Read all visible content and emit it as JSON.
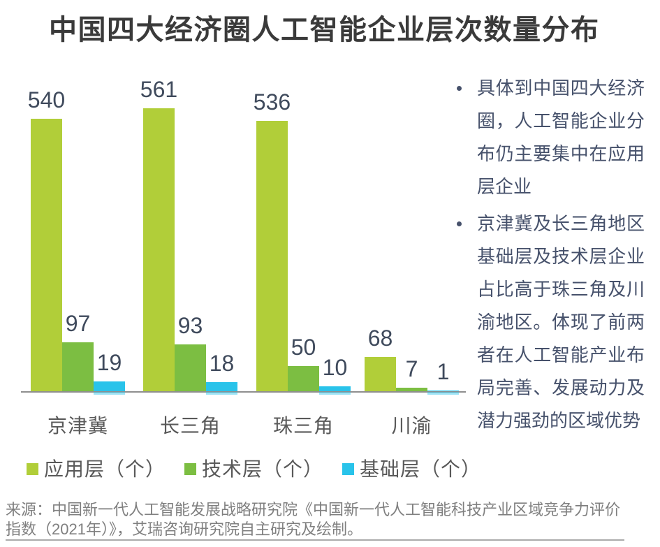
{
  "title": "中国四大经济圈人工智能企业层次数量分布",
  "chart_data": {
    "type": "bar",
    "categories": [
      "京津冀",
      "长三角",
      "珠三角",
      "川渝"
    ],
    "series": [
      {
        "name": "应用层（个）",
        "color": "#b1ce39",
        "values": [
          540,
          561,
          536,
          68
        ]
      },
      {
        "name": "技术层（个）",
        "color": "#7cbe42",
        "values": [
          97,
          93,
          50,
          7
        ]
      },
      {
        "name": "基础层（个）",
        "color": "#29c3ea",
        "values": [
          19,
          18,
          10,
          1
        ]
      }
    ],
    "value_labels": [
      [
        540,
        561,
        536,
        68
      ],
      [
        97,
        93,
        50,
        7
      ],
      [
        19,
        18,
        10,
        1
      ]
    ],
    "ylim": [
      0,
      580
    ],
    "grid": "off",
    "legend_position": "bottom",
    "axis_color": "#8f8f8f",
    "value_label_color": "#3f4a5c",
    "category_label_color": "#595959"
  },
  "notes": {
    "bullets": [
      "具体到中国四大经济圈，人工智能企业分布仍主要集中在应用层企业",
      "京津冀及长三角地区基础层及技术层企业占比高于珠三角及川渝地区。体现了前两者在人工智能产业布局完善、发展动力及潜力强劲的区域优势"
    ]
  },
  "source": "来源：中国新一代人工智能发展战略研究院《中国新一代人工智能科技产业区域竞争力评价指数（2021年）》，艾瑞咨询研究院自主研究及绘制。"
}
